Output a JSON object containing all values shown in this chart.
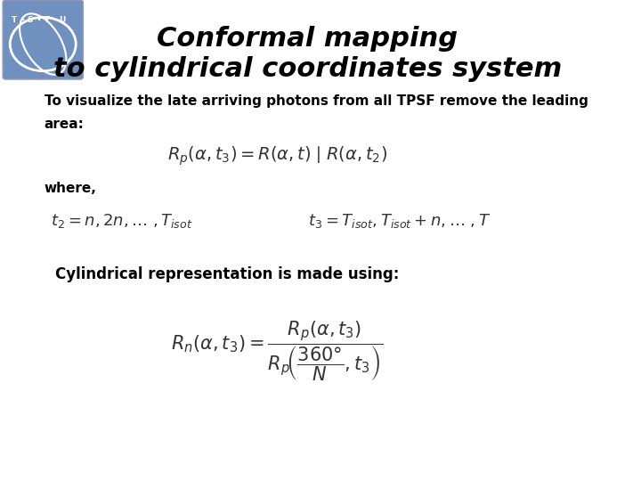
{
  "title_line1": "Conformal mapping",
  "title_line2": "to cylindrical coordinates system",
  "title_fontsize": 22,
  "title_style": "italic",
  "title_weight": "bold",
  "bg_color": "#ffffff",
  "text_color": "#000000",
  "body_text1": "To visualize the late arriving photons from all TPSF remove the leading",
  "body_text2": "area:",
  "body_text3": "where,",
  "body_text4": "Cylindrical representation is made using:",
  "logo_bg": "#7090c0",
  "body_fontsize": 11,
  "formula_color": "#333333"
}
